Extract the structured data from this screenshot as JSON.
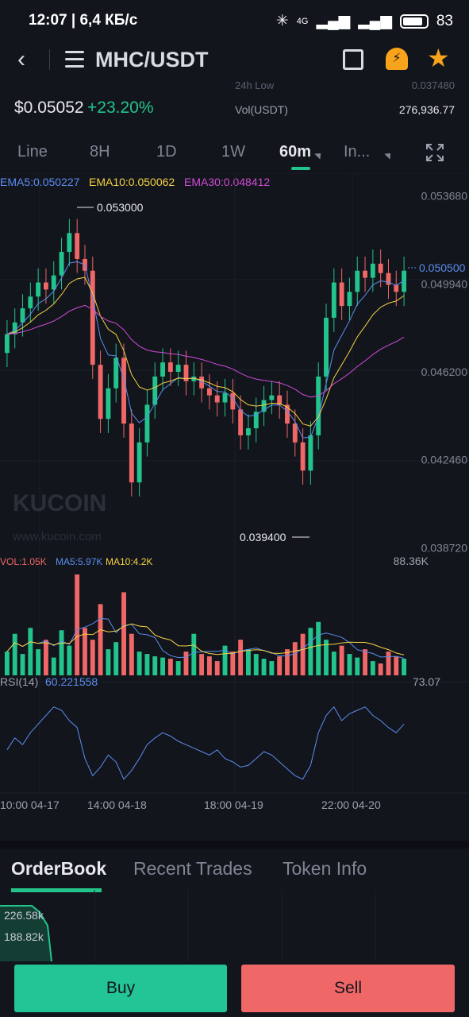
{
  "status": {
    "time_speed": "12:07 | 6,4 КБ/с",
    "network": "4G",
    "battery": "83"
  },
  "header": {
    "pair": "MHC/USDT"
  },
  "ticker": {
    "last_price": "$0.05052",
    "change": "+23.20%",
    "low_label": "24h Low",
    "low_value": "0.037480",
    "vol_label": "Vol(USDT)",
    "vol_value": "276,936.77"
  },
  "intervals": [
    "Line",
    "8H",
    "1D",
    "1W",
    "60m",
    "In..."
  ],
  "active_interval": "60m",
  "indicators": {
    "ema5": "EMA5:0.050227",
    "ema10": "EMA10:0.050062",
    "ema30": "EMA30:0.048412",
    "vol": "VOL:1.05K",
    "ma5": "MA5:5.97K",
    "ma10": "MA10:4.2K",
    "rsi_label": "RSI(14)",
    "rsi_value": "60.221558"
  },
  "price_axis": [
    "0.053680",
    "0.049940",
    "0.046200",
    "0.042460",
    "0.038720"
  ],
  "current_price_tag": "0.050500",
  "high_marker": "0.053000",
  "low_marker": "0.039400",
  "volume_max": "88.36K",
  "rsi_max": "73.07",
  "time_axis": [
    "10:00 04-17",
    "14:00 04-18",
    "18:00 04-19",
    "22:00 04-20"
  ],
  "watermark": {
    "brand": "KUCOIN",
    "url": "www.kucoin.com"
  },
  "orderbook": {
    "tabs": [
      "OrderBook",
      "Recent Trades",
      "Token Info"
    ],
    "depth_labels": [
      "226.58k",
      "188.82k"
    ]
  },
  "actions": {
    "buy": "Buy",
    "sell": "Sell"
  },
  "colors": {
    "up": "#23c48b",
    "down": "#ef6766",
    "ema5": "#5b8def",
    "ema10": "#f5d142",
    "ema30": "#d14bd6",
    "accent": "#f7a31b"
  },
  "chart_data": {
    "type": "candlestick",
    "ylim": [
      0.0387,
      0.0537
    ],
    "y_ticks": [
      0.05368,
      0.04994,
      0.0462,
      0.04246,
      0.03872
    ],
    "x_tick_labels": [
      "10:00 04-17",
      "14:00 04-18",
      "18:00 04-19",
      "22:00 04-20"
    ],
    "candles": [
      [
        0.047,
        0.0478
      ],
      [
        0.0478,
        0.0483
      ],
      [
        0.0483,
        0.0489
      ],
      [
        0.0489,
        0.0494
      ],
      [
        0.0494,
        0.05
      ],
      [
        0.05,
        0.0497
      ],
      [
        0.0497,
        0.0503
      ],
      [
        0.0503,
        0.0513
      ],
      [
        0.0513,
        0.0521
      ],
      [
        0.0521,
        0.051
      ],
      [
        0.051,
        0.0505
      ],
      [
        0.0505,
        0.0465
      ],
      [
        0.0465,
        0.0442
      ],
      [
        0.0442,
        0.0455
      ],
      [
        0.0455,
        0.0468
      ],
      [
        0.0468,
        0.044
      ],
      [
        0.044,
        0.0415
      ],
      [
        0.0415,
        0.0432
      ],
      [
        0.0432,
        0.0448
      ],
      [
        0.0448,
        0.046
      ],
      [
        0.046,
        0.0466
      ],
      [
        0.0466,
        0.0462
      ],
      [
        0.0462,
        0.0465
      ],
      [
        0.0465,
        0.0458
      ],
      [
        0.0458,
        0.046
      ],
      [
        0.046,
        0.0455
      ],
      [
        0.0455,
        0.0452
      ],
      [
        0.0452,
        0.0449
      ],
      [
        0.0449,
        0.0453
      ],
      [
        0.0453,
        0.0446
      ],
      [
        0.0446,
        0.0435
      ],
      [
        0.0435,
        0.0438
      ],
      [
        0.0438,
        0.0445
      ],
      [
        0.0445,
        0.045
      ],
      [
        0.045,
        0.0452
      ],
      [
        0.0452,
        0.0448
      ],
      [
        0.0448,
        0.044
      ],
      [
        0.044,
        0.0432
      ],
      [
        0.0432,
        0.042
      ],
      [
        0.042,
        0.0435
      ],
      [
        0.0435,
        0.046
      ],
      [
        0.046,
        0.0485
      ],
      [
        0.0485,
        0.05
      ],
      [
        0.05,
        0.049
      ],
      [
        0.049,
        0.0496
      ],
      [
        0.0496,
        0.0505
      ],
      [
        0.0505,
        0.0502
      ],
      [
        0.0502,
        0.0508
      ],
      [
        0.0508,
        0.0504
      ],
      [
        0.0504,
        0.0499
      ],
      [
        0.0499,
        0.0496
      ],
      [
        0.0496,
        0.0505
      ]
    ],
    "volume_max": 88.36,
    "volumes": [
      20,
      35,
      18,
      40,
      22,
      30,
      15,
      38,
      25,
      85,
      40,
      30,
      60,
      22,
      28,
      70,
      35,
      20,
      18,
      16,
      15,
      14,
      12,
      20,
      35,
      18,
      16,
      12,
      25,
      20,
      30,
      22,
      18,
      14,
      12,
      16,
      22,
      28,
      35,
      40,
      45,
      30,
      20,
      25,
      18,
      15,
      22,
      12,
      10,
      20,
      16,
      14
    ],
    "rsi": [
      45,
      52,
      48,
      55,
      60,
      65,
      70,
      68,
      62,
      58,
      40,
      30,
      35,
      42,
      38,
      28,
      33,
      40,
      48,
      52,
      55,
      53,
      50,
      48,
      46,
      44,
      42,
      45,
      40,
      38,
      35,
      36,
      40,
      44,
      42,
      38,
      34,
      30,
      28,
      36,
      55,
      65,
      70,
      62,
      66,
      68,
      70,
      65,
      62,
      58,
      55,
      60
    ]
  }
}
